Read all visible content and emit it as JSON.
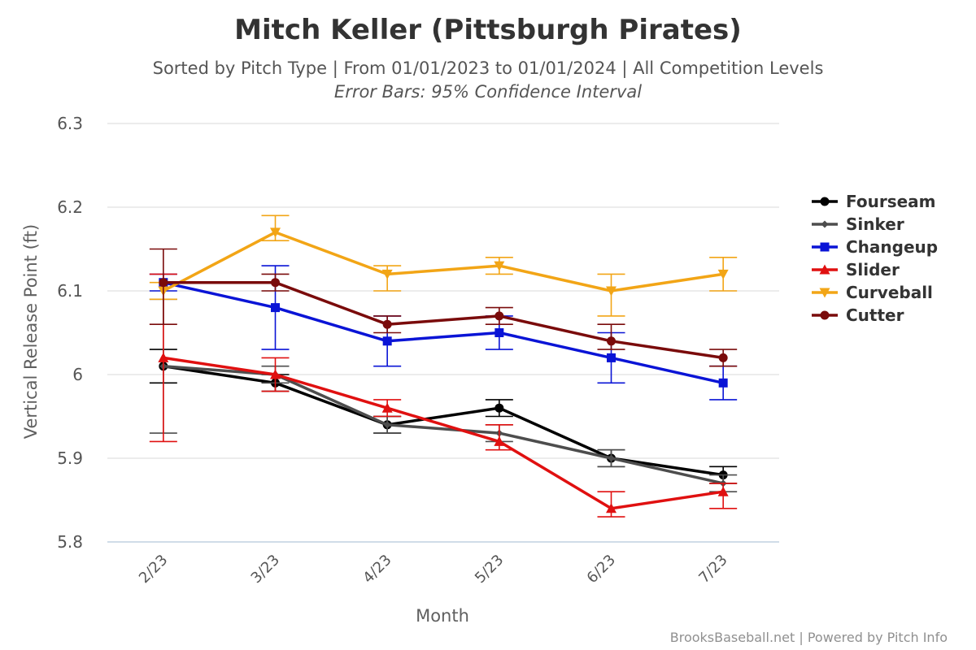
{
  "chart_data": {
    "type": "line",
    "title": "Mitch Keller (Pittsburgh Pirates)",
    "subtitle": "Sorted by Pitch Type | From 01/01/2023 to 01/01/2024 | All Competition Levels",
    "subtitle2": "Error Bars: 95% Confidence Interval",
    "xlabel": "Month",
    "ylabel": "Vertical Release Point (ft)",
    "categories": [
      "2/23",
      "3/23",
      "4/23",
      "5/23",
      "6/23",
      "7/23"
    ],
    "yticks": [
      "5.8",
      "5.9",
      "6",
      "6.1",
      "6.2",
      "6.3"
    ],
    "ylim": [
      5.8,
      6.3
    ],
    "grid": true,
    "legend_position": "right",
    "credits": "BrooksBaseball.net | Powered by Pitch Info",
    "series": [
      {
        "name": "Fourseam",
        "color": "#000000",
        "marker": "circle",
        "values": [
          6.01,
          5.99,
          5.94,
          5.96,
          5.9,
          5.88
        ],
        "errors": [
          [
            5.99,
            6.03
          ],
          [
            5.98,
            6.0
          ],
          [
            5.93,
            5.95
          ],
          [
            5.95,
            5.97
          ],
          [
            5.89,
            5.91
          ],
          [
            5.87,
            5.89
          ]
        ]
      },
      {
        "name": "Sinker",
        "color": "#4d4d4d",
        "marker": "diamond",
        "values": [
          6.01,
          6.0,
          5.94,
          5.93,
          5.9,
          5.87
        ],
        "errors": [
          [
            5.93,
            6.09
          ],
          [
            5.99,
            6.01
          ],
          [
            5.93,
            5.95
          ],
          [
            5.92,
            5.94
          ],
          [
            5.89,
            5.91
          ],
          [
            5.86,
            5.88
          ]
        ]
      },
      {
        "name": "Changeup",
        "color": "#0a14d6",
        "marker": "square",
        "values": [
          6.11,
          6.08,
          6.04,
          6.05,
          6.02,
          5.99
        ],
        "errors": [
          [
            6.1,
            6.12
          ],
          [
            6.03,
            6.13
          ],
          [
            6.01,
            6.07
          ],
          [
            6.03,
            6.07
          ],
          [
            5.99,
            6.05
          ],
          [
            5.97,
            6.01
          ]
        ]
      },
      {
        "name": "Slider",
        "color": "#e01010",
        "marker": "triangle",
        "values": [
          6.02,
          6.0,
          5.96,
          5.92,
          5.84,
          5.86
        ],
        "errors": [
          [
            5.92,
            6.12
          ],
          [
            5.98,
            6.02
          ],
          [
            5.95,
            5.97
          ],
          [
            5.91,
            5.94
          ],
          [
            5.83,
            5.86
          ],
          [
            5.84,
            5.87
          ]
        ]
      },
      {
        "name": "Curveball",
        "color": "#f2a516",
        "marker": "triangle-down",
        "values": [
          6.1,
          6.17,
          6.12,
          6.13,
          6.1,
          6.12
        ],
        "errors": [
          [
            6.09,
            6.11
          ],
          [
            6.16,
            6.19
          ],
          [
            6.1,
            6.13
          ],
          [
            6.12,
            6.14
          ],
          [
            6.07,
            6.12
          ],
          [
            6.1,
            6.14
          ]
        ]
      },
      {
        "name": "Cutter",
        "color": "#7a0b0b",
        "marker": "circle",
        "values": [
          6.11,
          6.11,
          6.06,
          6.07,
          6.04,
          6.02
        ],
        "errors": [
          [
            6.06,
            6.15
          ],
          [
            6.1,
            6.12
          ],
          [
            6.05,
            6.07
          ],
          [
            6.06,
            6.08
          ],
          [
            6.03,
            6.06
          ],
          [
            6.01,
            6.03
          ]
        ]
      }
    ]
  }
}
